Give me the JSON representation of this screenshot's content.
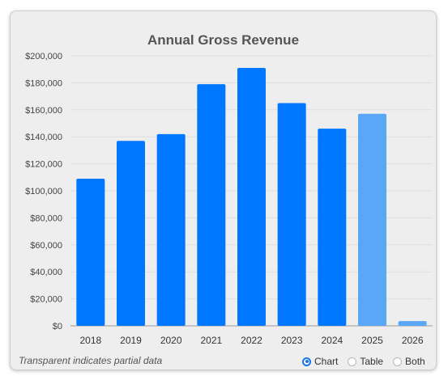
{
  "chart_data": {
    "type": "bar",
    "title": "Annual Gross Revenue",
    "categories": [
      "2018",
      "2019",
      "2020",
      "2021",
      "2022",
      "2023",
      "2024",
      "2025",
      "2026"
    ],
    "values": [
      109000,
      137000,
      142000,
      179000,
      191000,
      165000,
      146000,
      157000,
      3500
    ],
    "partial": [
      false,
      false,
      false,
      false,
      false,
      false,
      false,
      true,
      true
    ],
    "ylim": [
      0,
      200000
    ],
    "yticks": [
      "$200,000",
      "$180,000",
      "$160,000",
      "$140,000",
      "$120,000",
      "$100,000",
      "$80,000",
      "$60,000",
      "$40,000",
      "$20,000",
      "$0"
    ],
    "ytick_values": [
      200000,
      180000,
      160000,
      140000,
      120000,
      100000,
      80000,
      60000,
      40000,
      20000,
      0
    ],
    "grid": true,
    "colors": {
      "full": "#0077ff",
      "partial": "#5aa6f7"
    }
  },
  "footer": {
    "note": "Transparent indicates partial data",
    "options": [
      "Chart",
      "Table",
      "Both"
    ],
    "selected": "Chart"
  }
}
